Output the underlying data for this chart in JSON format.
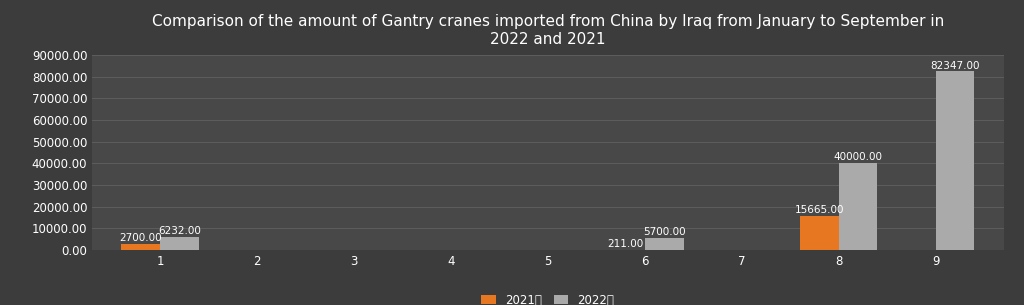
{
  "title": "Comparison of the amount of Gantry cranes imported from China by Iraq from January to September in\n2022 and 2021",
  "categories": [
    1,
    2,
    3,
    4,
    5,
    6,
    7,
    8,
    9
  ],
  "values_2021": [
    2700.0,
    0,
    0,
    0,
    0,
    211.0,
    0,
    15665.0,
    0
  ],
  "values_2022": [
    6232.0,
    0,
    0,
    0,
    0,
    5700.0,
    0,
    40000.0,
    82347.0
  ],
  "color_2021": "#E87722",
  "color_2022": "#AAAAAA",
  "background_color": "#3C3C3C",
  "plot_bg_color": "#484848",
  "text_color": "#FFFFFF",
  "grid_color": "#606060",
  "legend_2021": "2021年",
  "legend_2022": "2022年",
  "ylim": [
    0,
    90000
  ],
  "yticks": [
    0,
    10000,
    20000,
    30000,
    40000,
    50000,
    60000,
    70000,
    80000,
    90000
  ],
  "bar_width": 0.4,
  "label_fontsize": 7.5,
  "title_fontsize": 11,
  "tick_fontsize": 8.5
}
